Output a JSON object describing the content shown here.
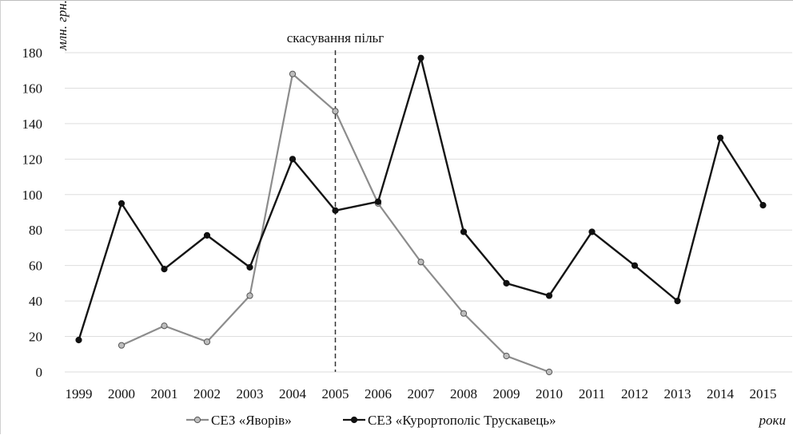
{
  "chart_data": {
    "type": "line",
    "title": "",
    "ylabel": "млн. грн.",
    "xlabel": "роки",
    "ylim": [
      0,
      180
    ],
    "y_ticks": [
      0,
      20,
      40,
      60,
      80,
      100,
      120,
      140,
      160,
      180
    ],
    "categories": [
      "1999",
      "2000",
      "2001",
      "2002",
      "2003",
      "2004",
      "2005",
      "2006",
      "2007",
      "2008",
      "2009",
      "2010",
      "2011",
      "2012",
      "2013",
      "2014",
      "2015"
    ],
    "grid": true,
    "legend_placement": "bottom",
    "annotation": {
      "label": "скасування пільг",
      "category": "2005"
    },
    "series": [
      {
        "name": "СЕЗ «Яворів»",
        "color": "#8c8c8c",
        "marker": "circle-open-gray",
        "values": [
          null,
          15,
          26,
          17,
          43,
          168,
          147,
          95,
          62,
          33,
          9,
          0,
          null,
          null,
          null,
          null,
          null
        ]
      },
      {
        "name": "СЕЗ «Курортополіс  Трускавець»",
        "color": "#141414",
        "marker": "circle-filled-black",
        "values": [
          18,
          95,
          58,
          77,
          59,
          120,
          91,
          96,
          177,
          79,
          50,
          43,
          79,
          60,
          40,
          132,
          94
        ]
      }
    ]
  }
}
